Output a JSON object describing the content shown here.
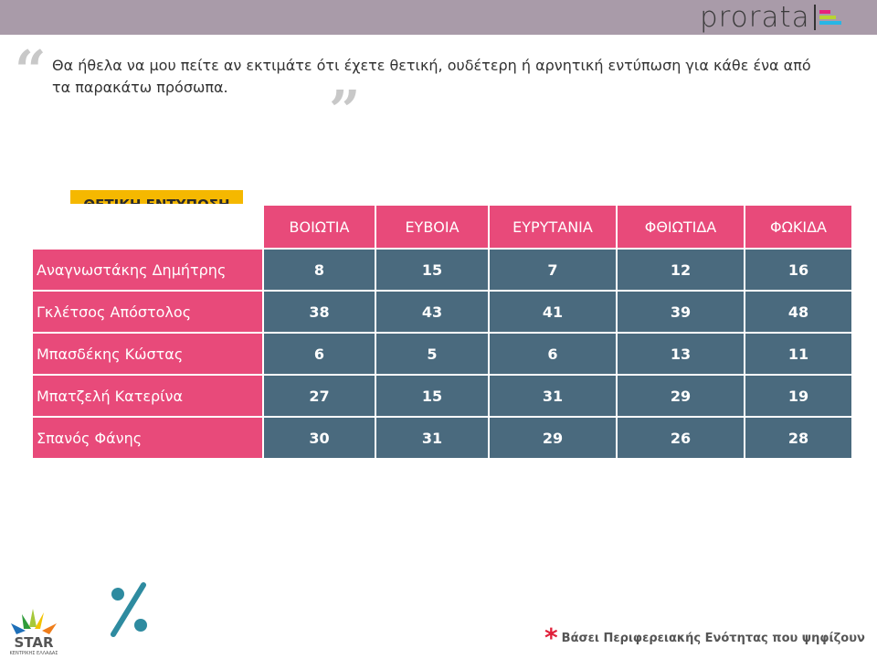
{
  "header": {
    "logo_text": "prorata",
    "logo_colors": [
      "#e8207c",
      "#b8d432",
      "#27b6e6"
    ],
    "background": "#a99ba9"
  },
  "question": "Θα ήθελα να μου πείτε αν εκτιμάτε ότι έχετε θετική, ουδέτερη ή αρνητική εντύπωση για κάθε ένα από τα παρακάτω πρόσωπα.",
  "table": {
    "label": "ΘΕΤΙΚΗ ΕΝΤΥΠΩΣΗ",
    "columns": [
      "ΒΟΙΩΤΙΑ",
      "ΕΥΒΟΙΑ",
      "ΕΥΡΥΤΑΝΙΑ",
      "ΦΘΙΩΤΙΔΑ",
      "ΦΩΚΙΔΑ"
    ],
    "rows": [
      {
        "name": "Αναγνωστάκης Δημήτρης",
        "values": [
          "8",
          "15",
          "7",
          "12",
          "16"
        ]
      },
      {
        "name": "Γκλέτσος Απόστολος",
        "values": [
          "38",
          "43",
          "41",
          "39",
          "48"
        ]
      },
      {
        "name": "Μπασδέκης Κώστας",
        "values": [
          "6",
          "5",
          "6",
          "13",
          "11"
        ]
      },
      {
        "name": "Μπατζελή Κατερίνα",
        "values": [
          "27",
          "15",
          "31",
          "29",
          "19"
        ]
      },
      {
        "name": "Σπανός Φάνης",
        "values": [
          "30",
          "31",
          "29",
          "26",
          "28"
        ]
      }
    ],
    "colors": {
      "header": "#e84a7a",
      "cells": "#4a6a7e",
      "label": "#f5b800"
    }
  },
  "footer": {
    "note": "Βάσει Περιφερειακής Ενότητας που ψηφίζουν",
    "station_logo": "STAR ΚΕΝΤΡΙΚΗΣ ΕΛΛΑΔΑΣ",
    "percent_icon": "percent-icon",
    "accent": "#2e8ba0"
  }
}
